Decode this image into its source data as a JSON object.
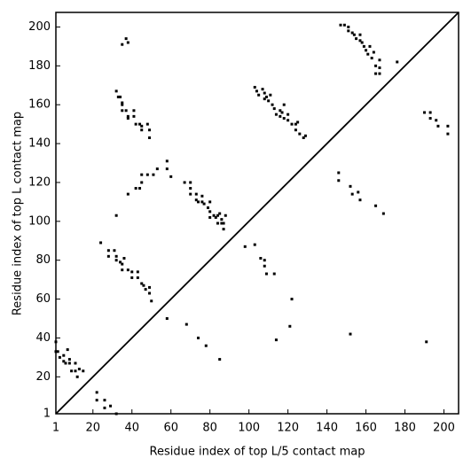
{
  "chart_data": {
    "type": "scatter",
    "xlabel": "Residue index of top L/5 contact map",
    "ylabel": "Residue index of top L contact map",
    "color": "#000000",
    "xlim": [
      1,
      207.5
    ],
    "ylim": [
      1,
      207.5
    ],
    "xticks": [
      1,
      20,
      40,
      60,
      80,
      100,
      120,
      140,
      160,
      180,
      200
    ],
    "yticks": [
      1,
      20,
      40,
      60,
      80,
      100,
      120,
      140,
      160,
      180,
      200
    ],
    "x": [
      35,
      37,
      38,
      32,
      33,
      34,
      35,
      35,
      35,
      37,
      38,
      38,
      41,
      41,
      42,
      44,
      45,
      45,
      48,
      49,
      49,
      38,
      42,
      44,
      45,
      45,
      48,
      51,
      53,
      58,
      58,
      60,
      67,
      70,
      70,
      70,
      73,
      73,
      74,
      76,
      76,
      77,
      79,
      80,
      80,
      82,
      83,
      84,
      85,
      86,
      87,
      87,
      88,
      86,
      84,
      80,
      32,
      24,
      28,
      28,
      31,
      32,
      32,
      34,
      35,
      35,
      36,
      38,
      40,
      40,
      43,
      43,
      45,
      46,
      47,
      49,
      49,
      50,
      58,
      68,
      74,
      78,
      85,
      1,
      1,
      2,
      3,
      5,
      5,
      6,
      7,
      8,
      8,
      9,
      11,
      11,
      12,
      13,
      15,
      22,
      22,
      26,
      26,
      29,
      32,
      98,
      103,
      106,
      108,
      108,
      109,
      113,
      114,
      121,
      122,
      147,
      149,
      151,
      151,
      153,
      154,
      155,
      157,
      157,
      158,
      159,
      160,
      161,
      162,
      163,
      164,
      165,
      165,
      167,
      167,
      167,
      176,
      103,
      104,
      105,
      107,
      108,
      108,
      110,
      111,
      112,
      113,
      114,
      116,
      116,
      117,
      118,
      120,
      120,
      122,
      124,
      124,
      125,
      126,
      128,
      129,
      109,
      118,
      146,
      146,
      152,
      153,
      156,
      157,
      165,
      169,
      152,
      191,
      190,
      193,
      193,
      196,
      197,
      202,
      202
    ],
    "y": [
      191,
      194,
      192,
      167,
      164,
      164,
      161,
      160,
      157,
      157,
      154,
      153,
      154,
      157,
      150,
      150,
      149,
      147,
      150,
      147,
      143,
      114,
      117,
      117,
      120,
      124,
      124,
      124,
      127,
      131,
      127,
      123,
      120,
      120,
      117,
      114,
      114,
      111,
      110,
      113,
      110,
      109,
      107,
      110,
      105,
      103,
      102,
      103,
      104,
      101,
      99,
      96,
      103,
      99,
      99,
      102,
      103,
      89,
      85,
      82,
      85,
      82,
      80,
      79,
      78,
      75,
      81,
      75,
      74,
      71,
      74,
      71,
      68,
      67,
      65,
      66,
      63,
      59,
      50,
      47,
      40,
      36,
      29,
      38,
      33,
      33,
      30,
      31,
      28,
      27,
      34,
      29,
      27,
      23,
      27,
      23,
      20,
      24,
      23,
      12,
      8,
      8,
      4,
      5,
      1,
      87,
      88,
      81,
      80,
      77,
      73,
      73,
      39,
      46,
      60,
      201,
      201,
      200,
      198,
      197,
      196,
      194,
      193,
      196,
      192,
      190,
      188,
      186,
      190,
      184,
      187,
      180,
      176,
      183,
      179,
      176,
      182,
      169,
      167,
      165,
      168,
      166,
      163,
      162,
      165,
      160,
      158,
      155,
      157,
      154,
      156,
      153,
      155,
      152,
      150,
      150,
      147,
      151,
      145,
      143,
      144,
      164,
      160,
      125,
      121,
      118,
      114,
      115,
      111,
      108,
      104,
      42,
      38,
      156,
      156,
      153,
      152,
      149,
      149,
      145
    ]
  }
}
